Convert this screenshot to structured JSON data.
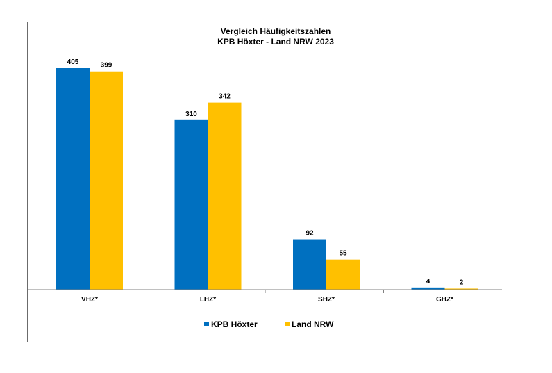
{
  "chart_data": {
    "type": "bar",
    "title": "Vergleich Häufigkeitszahlen",
    "subtitle": "KPB Höxter - Land NRW 2023",
    "xlabel": "",
    "ylabel": "",
    "categories": [
      "VHZ*",
      "LHZ*",
      "SHZ*",
      "GHZ*"
    ],
    "series": [
      {
        "name": "KPB Höxter",
        "color": "#0070c0",
        "values": [
          405,
          310,
          92,
          4
        ]
      },
      {
        "name": "Land NRW",
        "color": "#ffc000",
        "values": [
          399,
          342,
          55,
          2
        ]
      }
    ],
    "ylim": [
      0,
      405
    ],
    "grid": false,
    "legend": "bottom",
    "data_labels": [
      "405",
      "399",
      "310",
      "342",
      "92",
      "55",
      "4",
      "2"
    ]
  }
}
